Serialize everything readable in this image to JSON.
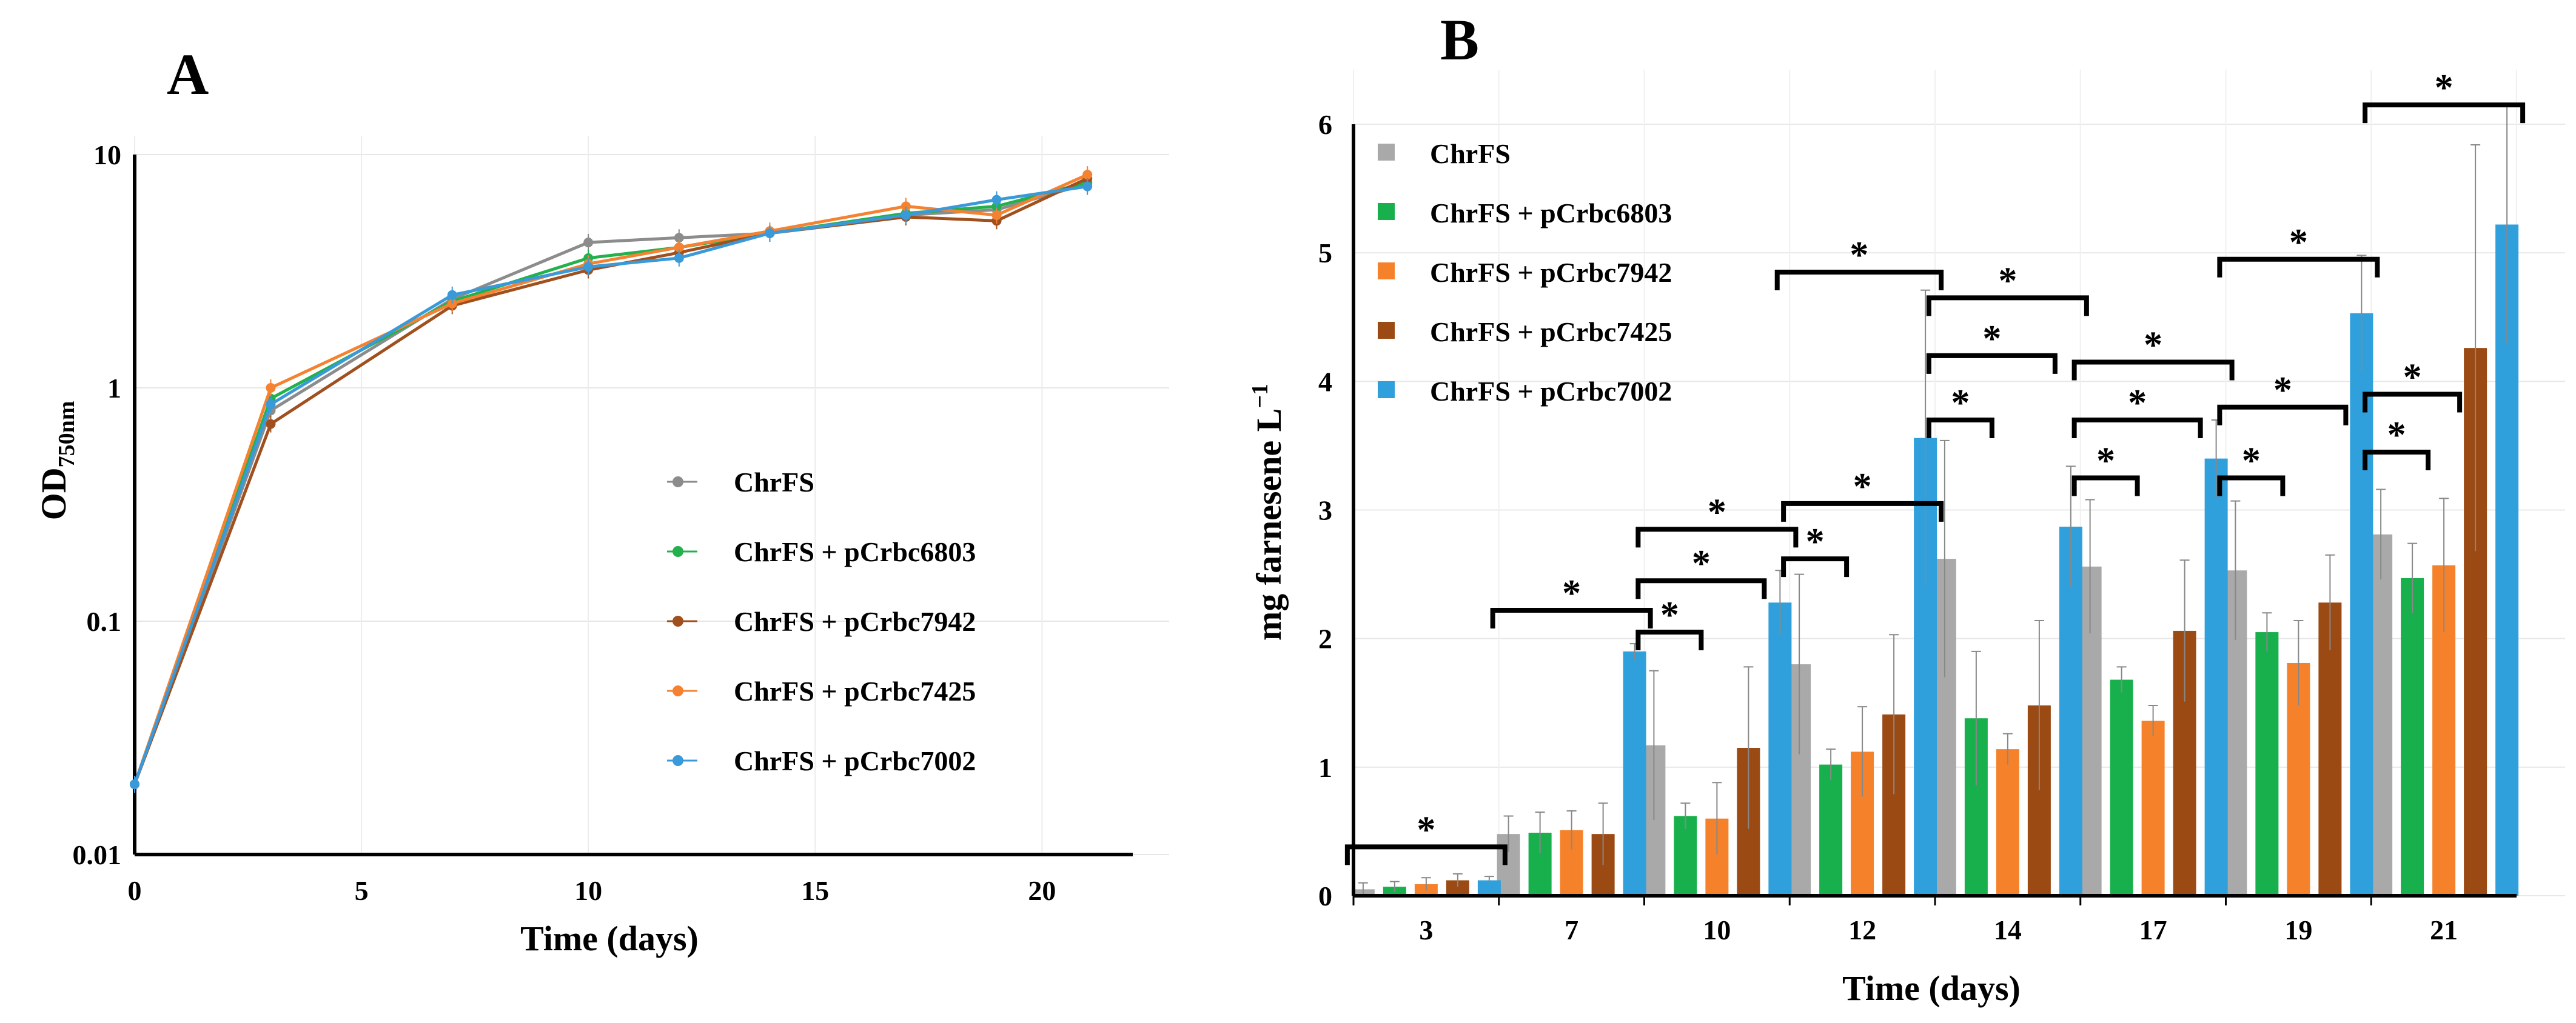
{
  "chart_data": [
    {
      "panel": "A",
      "type": "line",
      "title": "",
      "xlabel": "Time (days)",
      "ylabel": "OD",
      "ylabel_sub": "750nm",
      "yscale": "log",
      "xlim": [
        0,
        22
      ],
      "ylim": [
        0.01,
        10
      ],
      "xticks": [
        "0",
        "5",
        "10",
        "15",
        "20"
      ],
      "xtick_values": [
        0,
        5,
        10,
        15,
        20
      ],
      "yticks": [
        "0.01",
        "0.1",
        "1",
        "10"
      ],
      "ytick_values": [
        0.01,
        0.1,
        1,
        10
      ],
      "grid": true,
      "legend_position": "lower-right",
      "x": [
        0,
        3,
        7,
        10,
        12,
        14,
        17,
        19,
        21
      ],
      "series": [
        {
          "name": "ChrFS",
          "color": "#8c8c8c",
          "values": [
            0.02,
            0.8,
            2.4,
            4.2,
            4.4,
            4.6,
            5.5,
            5.8,
            7.5
          ]
        },
        {
          "name": "ChrFS + pCrbc6803",
          "color": "#22b14c",
          "values": [
            0.02,
            0.9,
            2.35,
            3.6,
            4.0,
            4.6,
            5.6,
            6.0,
            7.6
          ]
        },
        {
          "name": "ChrFS + pCrbc7942",
          "color": "#a0501e",
          "values": [
            0.02,
            0.7,
            2.25,
            3.2,
            3.8,
            4.6,
            5.4,
            5.2,
            7.9
          ]
        },
        {
          "name": "ChrFS + pCrbc7425",
          "color": "#f58231",
          "values": [
            0.02,
            1.0,
            2.3,
            3.4,
            4.0,
            4.7,
            6.0,
            5.5,
            8.2
          ]
        },
        {
          "name": "ChrFS + pCrbc7002",
          "color": "#3a9ad9",
          "values": [
            0.02,
            0.85,
            2.5,
            3.3,
            3.6,
            4.6,
            5.5,
            6.4,
            7.3
          ]
        }
      ]
    },
    {
      "panel": "B",
      "type": "bar",
      "title": "",
      "xlabel": "Time (days)",
      "ylabel": "mg farnesene L",
      "ylabel_sup": "−1",
      "ylim": [
        0,
        6
      ],
      "yticks": [
        "0",
        "1",
        "2",
        "3",
        "4",
        "5",
        "6"
      ],
      "ytick_values": [
        0,
        1,
        2,
        3,
        4,
        5,
        6
      ],
      "grid": true,
      "legend_position": "top-left",
      "categories": [
        "3",
        "7",
        "10",
        "12",
        "14",
        "17",
        "19",
        "21"
      ],
      "series": [
        {
          "name": "ChrFS",
          "color": "#a9a9a9",
          "values": [
            0.05,
            0.48,
            1.17,
            1.8,
            2.62,
            2.56,
            2.53,
            2.81
          ],
          "errors": [
            0.05,
            0.14,
            0.58,
            0.7,
            0.92,
            0.52,
            0.54,
            0.35
          ]
        },
        {
          "name": "ChrFS + pCrbc6803",
          "color": "#18b04c",
          "values": [
            0.07,
            0.49,
            0.62,
            1.02,
            1.38,
            1.68,
            2.05,
            2.47
          ],
          "errors": [
            0.04,
            0.16,
            0.1,
            0.12,
            0.52,
            0.1,
            0.15,
            0.27
          ]
        },
        {
          "name": "ChrFS + pCrbc7942",
          "color": "#f5822a",
          "values": [
            0.09,
            0.51,
            0.6,
            1.12,
            1.14,
            1.36,
            1.81,
            2.57
          ],
          "errors": [
            0.05,
            0.15,
            0.28,
            0.35,
            0.12,
            0.12,
            0.33,
            0.52
          ]
        },
        {
          "name": "ChrFS + pCrbc7425",
          "color": "#9b4a14",
          "values": [
            0.12,
            0.48,
            1.15,
            1.41,
            1.48,
            2.06,
            2.28,
            4.26
          ],
          "errors": [
            0.05,
            0.24,
            0.63,
            0.62,
            0.66,
            0.55,
            0.37,
            1.58
          ]
        },
        {
          "name": "ChrFS + pCrbc7002",
          "color": "#2fa0dc",
          "values": [
            0.12,
            1.9,
            2.28,
            3.56,
            2.87,
            3.4,
            4.53,
            5.22
          ],
          "errors": [
            0.03,
            0.06,
            0.25,
            1.15,
            0.47,
            0.3,
            0.45,
            0.93
          ]
        }
      ],
      "annotations": [
        {
          "category": 0,
          "from_series": 0,
          "to_series": 4,
          "level": 0.38,
          "label": "*"
        },
        {
          "category": 1,
          "from_series": 0,
          "to_series": 4,
          "level": 2.22,
          "label": "*"
        },
        {
          "category": 2,
          "from_series": 0,
          "to_series": 1,
          "level": 2.05,
          "label": "*"
        },
        {
          "category": 2,
          "from_series": 0,
          "to_series": 3,
          "level": 2.45,
          "label": "*"
        },
        {
          "category": 2,
          "from_series": 0,
          "to_series": 4,
          "level": 2.85,
          "label": "*"
        },
        {
          "category": 3,
          "from_series": 0,
          "to_series": 1,
          "level": 2.62,
          "label": "*"
        },
        {
          "category": 3,
          "from_series": 0,
          "to_series": 4,
          "level": 3.05,
          "label": "*"
        },
        {
          "category": 3,
          "from_series": -0.2,
          "to_series": 4,
          "level": 4.85,
          "label": "*"
        },
        {
          "category": 4,
          "from_series": 0,
          "to_series": 1,
          "level": 3.7,
          "label": "*"
        },
        {
          "category": 4,
          "from_series": 0,
          "to_series": 3,
          "level": 4.2,
          "label": "*"
        },
        {
          "category": 4,
          "from_series": 0,
          "to_series": 4,
          "level": 4.65,
          "label": "*"
        },
        {
          "category": 5,
          "from_series": 0,
          "to_series": 1,
          "level": 3.25,
          "label": "*"
        },
        {
          "category": 5,
          "from_series": 0,
          "to_series": 3,
          "level": 3.7,
          "label": "*"
        },
        {
          "category": 5,
          "from_series": 0,
          "to_series": 4,
          "level": 4.15,
          "label": "*"
        },
        {
          "category": 6,
          "from_series": 0,
          "to_series": 1,
          "level": 3.25,
          "label": "*"
        },
        {
          "category": 6,
          "from_series": 0,
          "to_series": 3,
          "level": 3.8,
          "label": "*"
        },
        {
          "category": 6,
          "from_series": 0,
          "to_series": 4,
          "level": 4.95,
          "label": "*"
        },
        {
          "category": 7,
          "from_series": 0,
          "to_series": 1,
          "level": 3.45,
          "label": "*"
        },
        {
          "category": 7,
          "from_series": 0,
          "to_series": 2,
          "level": 3.9,
          "label": "*"
        },
        {
          "category": 7,
          "from_series": 0,
          "to_series": 4,
          "level": 6.15,
          "label": "*"
        }
      ]
    }
  ]
}
